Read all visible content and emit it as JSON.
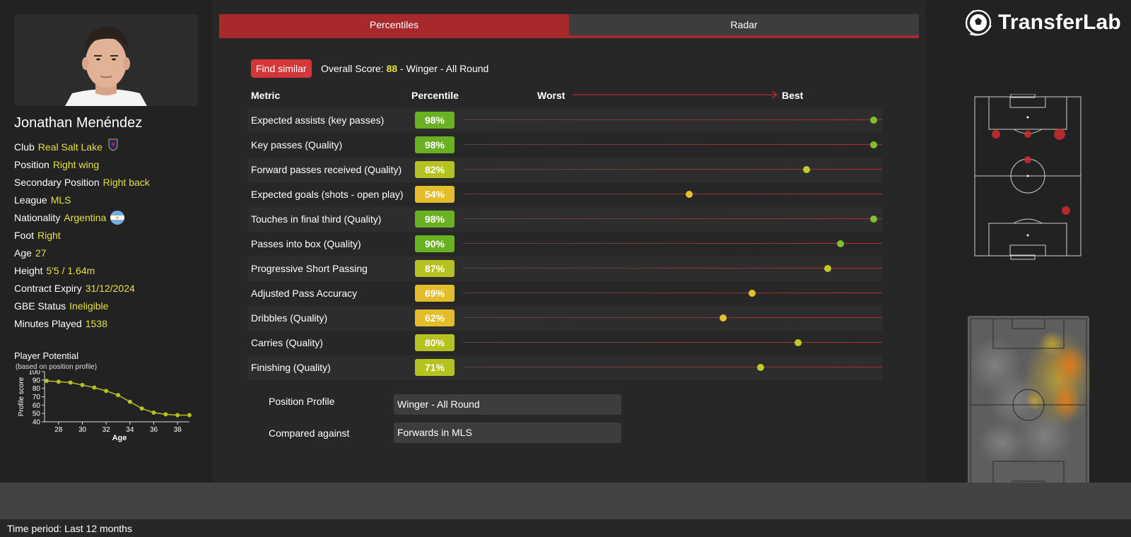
{
  "player": {
    "name": "Jonathan Menéndez",
    "info": [
      {
        "label": "Club",
        "value": "Real Salt Lake"
      },
      {
        "label": "Position",
        "value": "Right wing"
      },
      {
        "label": "Secondary Position",
        "value": "Right back"
      },
      {
        "label": "League",
        "value": "MLS"
      },
      {
        "label": "Nationality",
        "value": "Argentina"
      },
      {
        "label": "Foot",
        "value": "Right"
      },
      {
        "label": "Age",
        "value": "27"
      },
      {
        "label": "Height",
        "value": "5'5 / 1.64m"
      },
      {
        "label": "Contract Expiry",
        "value": "31/12/2024"
      },
      {
        "label": "GBE Status",
        "value": "Ineligible"
      },
      {
        "label": "Minutes Played",
        "value": "1538"
      }
    ]
  },
  "potential": {
    "title": "Player Potential",
    "subtitle": "(based on position profile)"
  },
  "chart_data": {
    "type": "line",
    "xlabel": "Age",
    "ylabel": "Profile score",
    "x": [
      27,
      28,
      29,
      30,
      31,
      32,
      33,
      34,
      35,
      36,
      37,
      38,
      39
    ],
    "values": [
      89,
      88,
      87,
      84,
      81,
      77,
      72,
      64,
      56,
      51,
      49,
      48,
      48
    ],
    "xticks": [
      "28",
      "30",
      "32",
      "34",
      "36",
      "38"
    ],
    "yticks": [
      "40",
      "50",
      "60",
      "70",
      "80",
      "90",
      "100"
    ],
    "xlim": [
      27,
      39
    ],
    "ylim": [
      40,
      100
    ],
    "color": "#b5c21f"
  },
  "tabs": [
    {
      "label": "Percentiles",
      "active": true
    },
    {
      "label": "Radar",
      "active": false
    }
  ],
  "find_similar_label": "Find similar",
  "overall": {
    "prefix": "Overall Score: ",
    "score": "88",
    "suffix": " - Winger - All Round"
  },
  "table_headers": {
    "metric": "Metric",
    "percentile": "Percentile",
    "worst": "Worst",
    "best": "Best"
  },
  "metrics": [
    {
      "name": "Expected assists (key passes)",
      "pct": 98,
      "label": "98%"
    },
    {
      "name": "Key passes (Quality)",
      "pct": 98,
      "label": "98%"
    },
    {
      "name": "Forward passes received (Quality)",
      "pct": 82,
      "label": "82%"
    },
    {
      "name": "Expected goals (shots - open play)",
      "pct": 54,
      "label": "54%"
    },
    {
      "name": "Touches in final third (Quality)",
      "pct": 98,
      "label": "98%"
    },
    {
      "name": "Passes into box (Quality)",
      "pct": 90,
      "label": "90%"
    },
    {
      "name": "Progressive Short Passing",
      "pct": 87,
      "label": "87%"
    },
    {
      "name": "Adjusted Pass Accuracy",
      "pct": 69,
      "label": "69%"
    },
    {
      "name": "Dribbles (Quality)",
      "pct": 62,
      "label": "62%"
    },
    {
      "name": "Carries (Quality)",
      "pct": 80,
      "label": "80%"
    },
    {
      "name": "Finishing (Quality)",
      "pct": 71,
      "label": "71%"
    }
  ],
  "profile": {
    "position_profile_label": "Position Profile",
    "position_profile_value": "Winger - All Round",
    "compared_label": "Compared against",
    "compared_value": "Forwards in MLS"
  },
  "brand": {
    "name": "TransferLab"
  },
  "footer": {
    "time_period": "Time period: Last 12 months"
  },
  "colors": {
    "accent_red": "#a8292b",
    "value_yellow": "#e5e043",
    "badge_green": "#6ab023",
    "badge_lime": "#b5c21f",
    "badge_yellow": "#e3bd2a"
  }
}
